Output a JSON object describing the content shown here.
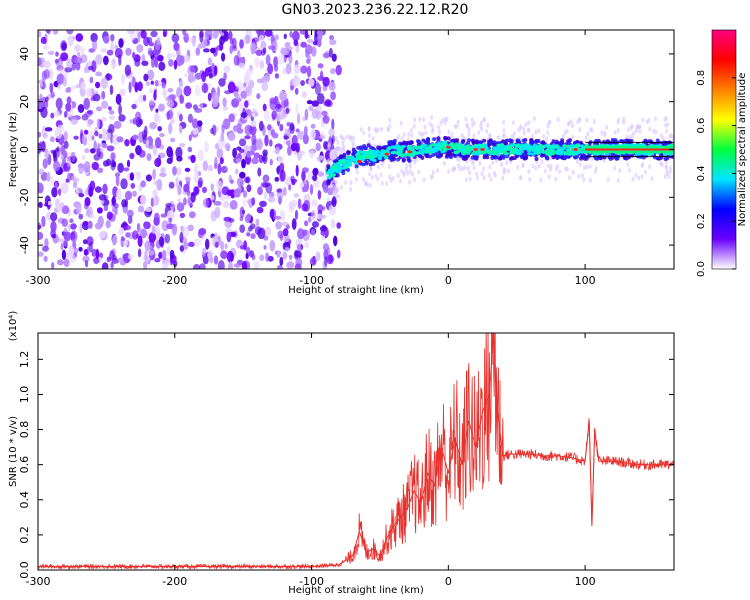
{
  "title": "GN03.2023.236.22.12.R20",
  "chart_data": [
    {
      "type": "heatmap",
      "xlabel": "Height of straight line (km)",
      "ylabel": "Frequency (Hz)",
      "xlim": [
        -300,
        165
      ],
      "ylim": [
        -50,
        50
      ],
      "xticks": [
        -300,
        -200,
        -100,
        0,
        100
      ],
      "yticks": [
        -40,
        -20,
        0,
        20,
        40
      ],
      "noise_region_x": [
        -300,
        -80
      ],
      "ridge": {
        "x": [
          -88,
          -80,
          -70,
          -60,
          -50,
          -40,
          -30,
          -20,
          -10,
          0,
          10,
          20,
          30,
          40,
          60,
          80,
          100,
          120,
          140,
          165
        ],
        "y": [
          -11,
          -7,
          -4,
          -2,
          -3,
          0,
          -1,
          0,
          1,
          1,
          0,
          0,
          0,
          0,
          0,
          0,
          0,
          0,
          0,
          0
        ]
      },
      "colorbar": {
        "label": "Normalized spectral amplitude",
        "range": [
          0,
          1
        ],
        "ticks": [
          "0.0",
          "0.2",
          "0.4",
          "0.6",
          "0.8"
        ],
        "colors": [
          "#ffffff",
          "#6a00ff",
          "#0000ff",
          "#00e5ff",
          "#00ff40",
          "#ffff00",
          "#ff8000",
          "#ff0000",
          "#ff0080"
        ]
      },
      "grid": false
    },
    {
      "type": "line",
      "xlabel": "Height of straight line (km)",
      "ylabel": "SNR (10 * v/v)",
      "y_multiplier": "(x10⁴)",
      "xlim": [
        -300,
        165
      ],
      "ylim": [
        0,
        1.35
      ],
      "xticks": [
        -300,
        -200,
        -100,
        0,
        100
      ],
      "yticks": [
        "0.0",
        "0.2",
        "0.4",
        "0.6",
        "0.8",
        "1.0",
        "1.2"
      ],
      "series": [
        {
          "color": "#e8302c",
          "x": [
            -300,
            -250,
            -200,
            -150,
            -100,
            -80,
            -70,
            -65,
            -60,
            -55,
            -50,
            -45,
            -40,
            -35,
            -30,
            -25,
            -20,
            -15,
            -10,
            -5,
            0,
            5,
            10,
            15,
            20,
            25,
            30,
            33,
            36,
            40,
            45,
            50,
            60,
            70,
            80,
            90,
            100,
            103,
            105,
            107,
            110,
            120,
            130,
            140,
            150,
            165
          ],
          "y": [
            0.02,
            0.02,
            0.02,
            0.02,
            0.02,
            0.03,
            0.08,
            0.22,
            0.1,
            0.12,
            0.08,
            0.18,
            0.25,
            0.3,
            0.35,
            0.45,
            0.38,
            0.55,
            0.48,
            0.7,
            0.55,
            0.75,
            0.6,
            0.85,
            0.7,
            0.9,
            1.0,
            1.35,
            0.9,
            0.65,
            0.66,
            0.66,
            0.66,
            0.65,
            0.65,
            0.64,
            0.62,
            0.85,
            0.25,
            0.8,
            0.62,
            0.62,
            0.61,
            0.6,
            0.6,
            0.6
          ]
        }
      ],
      "grid": false
    }
  ]
}
